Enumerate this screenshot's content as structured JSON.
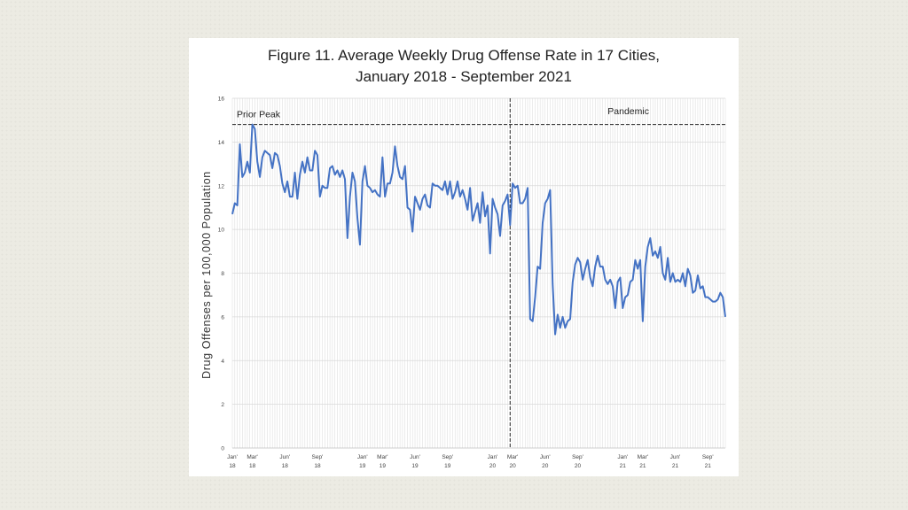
{
  "chart_data": {
    "type": "line",
    "title_line1": "Figure 11. Average Weekly Drug Offense Rate in 17 Cities,",
    "title_line2": "January 2018 - September 2021",
    "xlabel": "",
    "ylabel": "Drug Offenses per 100,000 Population",
    "ylim": [
      0,
      16
    ],
    "yticks": [
      0,
      2,
      4,
      6,
      8,
      10,
      12,
      14,
      16
    ],
    "grid": true,
    "line_color": "#4472c4",
    "x_tick_labels": [
      {
        "week": 1,
        "month": "Jan'",
        "year": "18"
      },
      {
        "week": 9,
        "month": "Mar'",
        "year": "18"
      },
      {
        "week": 22,
        "month": "Jun'",
        "year": "18"
      },
      {
        "week": 35,
        "month": "Sep'",
        "year": "18"
      },
      {
        "week": 53,
        "month": "Jan'",
        "year": "19"
      },
      {
        "week": 61,
        "month": "Mar'",
        "year": "19"
      },
      {
        "week": 74,
        "month": "Jun'",
        "year": "19"
      },
      {
        "week": 87,
        "month": "Sep'",
        "year": "19"
      },
      {
        "week": 105,
        "month": "Jan'",
        "year": "20"
      },
      {
        "week": 113,
        "month": "Mar'",
        "year": "20"
      },
      {
        "week": 126,
        "month": "Jun'",
        "year": "20"
      },
      {
        "week": 139,
        "month": "Sep'",
        "year": "20"
      },
      {
        "week": 157,
        "month": "Jan'",
        "year": "21"
      },
      {
        "week": 165,
        "month": "Mar'",
        "year": "21"
      },
      {
        "week": 178,
        "month": "Jun'",
        "year": "21"
      },
      {
        "week": 191,
        "month": "Sep'",
        "year": "21"
      }
    ],
    "annotations": {
      "prior_peak": {
        "label": "Prior Peak",
        "value": 14.8
      },
      "pandemic": {
        "label": "Pandemic",
        "week": 112
      }
    },
    "series": [
      {
        "x_start_week": 1,
        "values": [
          10.7,
          11.2,
          11.1,
          13.9,
          12.4,
          12.6,
          13.1,
          12.6,
          14.8,
          14.6,
          13.1,
          12.4,
          13.3,
          13.6,
          13.5,
          13.4,
          12.8,
          13.5,
          13.4,
          12.9,
          12.1,
          11.7,
          12.2,
          11.5,
          11.5,
          12.6,
          11.4,
          12.5,
          13.1,
          12.6,
          13.3,
          12.7,
          12.7,
          13.6,
          13.4,
          11.5,
          12.0,
          11.9,
          11.9,
          12.8,
          12.9,
          12.5,
          12.7,
          12.4,
          12.7,
          12.3,
          9.6,
          11.5,
          12.6,
          12.2,
          10.5,
          9.3,
          12.2,
          12.9,
          12.0,
          11.9,
          11.7,
          11.8,
          11.6,
          11.5,
          13.3,
          11.5,
          12.1,
          12.1,
          12.6,
          13.8,
          12.9,
          12.4,
          12.3,
          12.9,
          11.0,
          10.9,
          9.9,
          11.5,
          11.2,
          10.9,
          11.4,
          11.6,
          11.1,
          11.0,
          12.1,
          12.0,
          12.0,
          11.9,
          11.8,
          12.2,
          11.6,
          12.2,
          11.4,
          11.7,
          12.2,
          11.5,
          11.8,
          11.4,
          10.9,
          11.9,
          10.4,
          10.8,
          11.2,
          10.3,
          11.7,
          10.6,
          11.1,
          8.9,
          11.4,
          11.0,
          10.7,
          9.7,
          11.1,
          11.3,
          11.6,
          10.2,
          12.1,
          11.9,
          12.0,
          11.2,
          11.2,
          11.4,
          11.9,
          5.9,
          5.8,
          6.9,
          8.3,
          8.2,
          10.3,
          11.2,
          11.4,
          11.8,
          7.5,
          5.2,
          6.1,
          5.5,
          6.0,
          5.5,
          5.8,
          5.9,
          7.6,
          8.4,
          8.7,
          8.5,
          7.7,
          8.2,
          8.6,
          7.8,
          7.4,
          8.3,
          8.8,
          8.3,
          8.3,
          7.7,
          7.5,
          7.7,
          7.4,
          6.4,
          7.6,
          7.8,
          6.4,
          6.9,
          7.0,
          7.6,
          7.7,
          8.6,
          8.2,
          8.6,
          5.8,
          8.3,
          9.2,
          9.6,
          8.8,
          9.0,
          8.7,
          9.2,
          8.0,
          7.7,
          8.7,
          7.6,
          8.0,
          7.6,
          7.7,
          7.6,
          8.0,
          7.4,
          8.2,
          7.9,
          7.1,
          7.2,
          7.9,
          7.3,
          7.4,
          6.9,
          6.9,
          6.8,
          6.7,
          6.7,
          6.8,
          7.1,
          6.9,
          6.0
        ]
      }
    ]
  }
}
